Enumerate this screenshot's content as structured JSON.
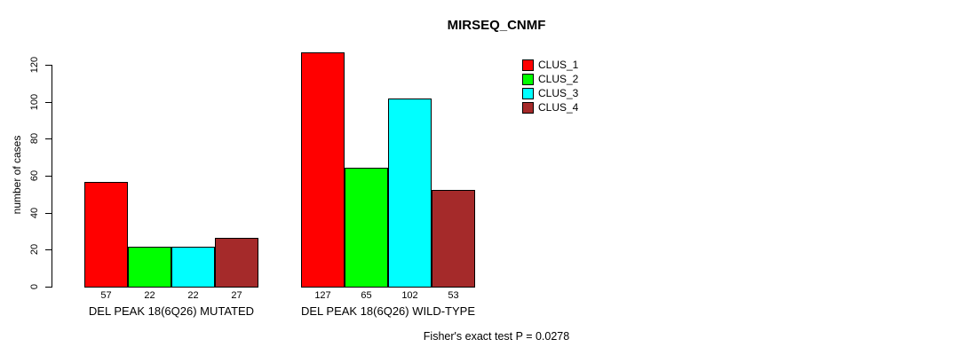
{
  "chart_data": {
    "type": "bar",
    "title": "MIRSEQ_CNMF",
    "xlabel": "",
    "ylabel": "number of cases",
    "ylim": [
      0,
      130
    ],
    "yticks": [
      0,
      20,
      40,
      60,
      80,
      100,
      120
    ],
    "grid": false,
    "legend_position": "top-right",
    "bar_outline_color": "#000000",
    "categories": [
      "DEL PEAK 18(6Q26) MUTATED",
      "DEL PEAK 18(6Q26) WILD-TYPE"
    ],
    "groups": [
      {
        "label": "DEL PEAK 18(6Q26) MUTATED",
        "values": [
          57,
          22,
          22,
          27
        ]
      },
      {
        "label": "DEL PEAK 18(6Q26) WILD-TYPE",
        "values": [
          127,
          65,
          102,
          53
        ]
      }
    ],
    "series": [
      {
        "name": "CLUS_1",
        "color": "#FF0000"
      },
      {
        "name": "CLUS_2",
        "color": "#00FF00"
      },
      {
        "name": "CLUS_3",
        "color": "#00FFFF"
      },
      {
        "name": "CLUS_4",
        "color": "#A52A2A"
      }
    ],
    "footnote": "Fisher's exact test P = 0.0278"
  }
}
